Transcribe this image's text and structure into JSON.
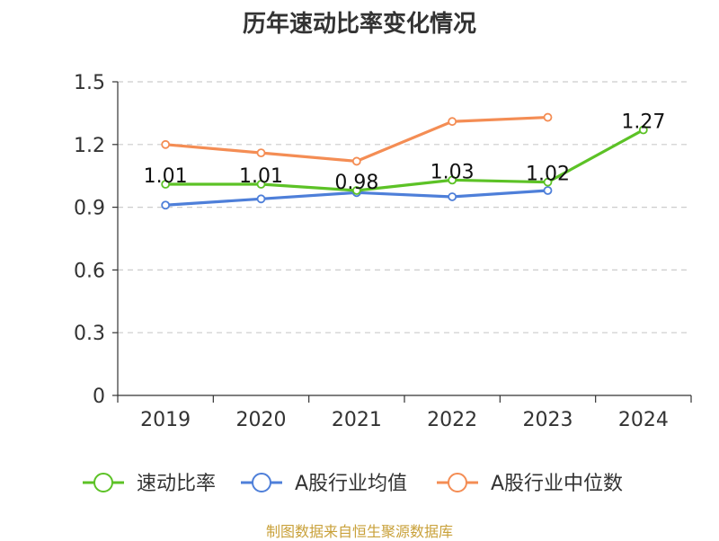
{
  "chart_data": {
    "type": "line",
    "title": "历年速动比率变化情况",
    "categories": [
      "2019",
      "2020",
      "2021",
      "2022",
      "2023",
      "2024"
    ],
    "yticks": [
      "0",
      "0.3",
      "0.6",
      "0.9",
      "1.2",
      "1.5"
    ],
    "ylim": [
      0,
      1.5
    ],
    "grid": true,
    "legend_position": "bottom",
    "series": [
      {
        "name": "速动比率",
        "color": "#5cc226",
        "values": [
          1.01,
          1.01,
          0.98,
          1.03,
          1.02,
          1.27
        ],
        "labels": [
          "1.01",
          "1.01",
          "0.98",
          "1.03",
          "1.02",
          "1.27"
        ]
      },
      {
        "name": "A股行业均值",
        "color": "#4e7fd9",
        "values": [
          0.91,
          0.94,
          0.97,
          0.95,
          0.98,
          null
        ]
      },
      {
        "name": "A股行业中位数",
        "color": "#f48d54",
        "values": [
          1.2,
          1.16,
          1.12,
          1.31,
          1.33,
          null
        ]
      }
    ]
  },
  "source": "制图数据来自恒生聚源数据库"
}
